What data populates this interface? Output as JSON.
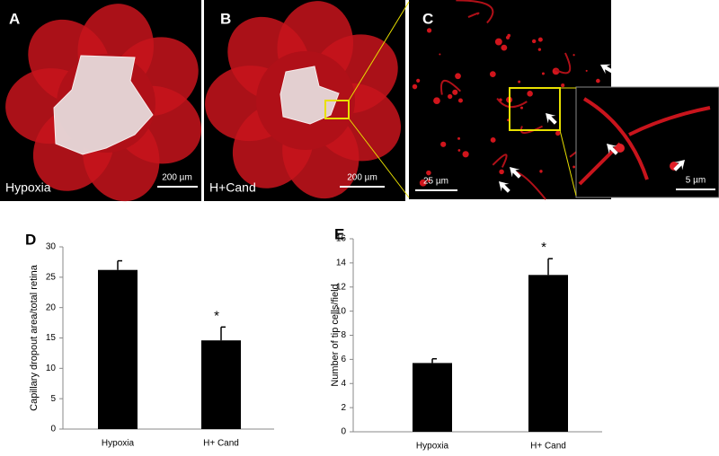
{
  "image_panels": [
    {
      "label": "A",
      "caption": "Hypoxia",
      "scale_bar": "200 µm"
    },
    {
      "label": "B",
      "caption": "H+Cand",
      "scale_bar": "200 µm"
    },
    {
      "label": "C",
      "scale_bar": "25 µm"
    },
    {
      "scale_bar": "5 µm"
    }
  ],
  "chart_data": [
    {
      "type": "bar",
      "panel_label": "D",
      "y_label": "Capillary dropout area/total retina",
      "categories": [
        "Hypoxia",
        "H+ Cand"
      ],
      "values": [
        26.2,
        14.6
      ],
      "errors": [
        1.5,
        2.2
      ],
      "color": "#000000",
      "annotation": "*",
      "ylim": [
        0,
        30
      ],
      "yticks": [
        0,
        5,
        10,
        15,
        20,
        25,
        30
      ]
    },
    {
      "type": "bar",
      "panel_label": "E",
      "y_label": "Number of tip cells/field",
      "categories": [
        "Hypoxia",
        "H+ Cand"
      ],
      "values": [
        5.7,
        13.0
      ],
      "errors": [
        0.35,
        1.35
      ],
      "color": "#000000",
      "annotation": "*",
      "ylim": [
        0,
        16
      ],
      "yticks": [
        0,
        2,
        4,
        6,
        8,
        10,
        12,
        14,
        16
      ]
    }
  ]
}
